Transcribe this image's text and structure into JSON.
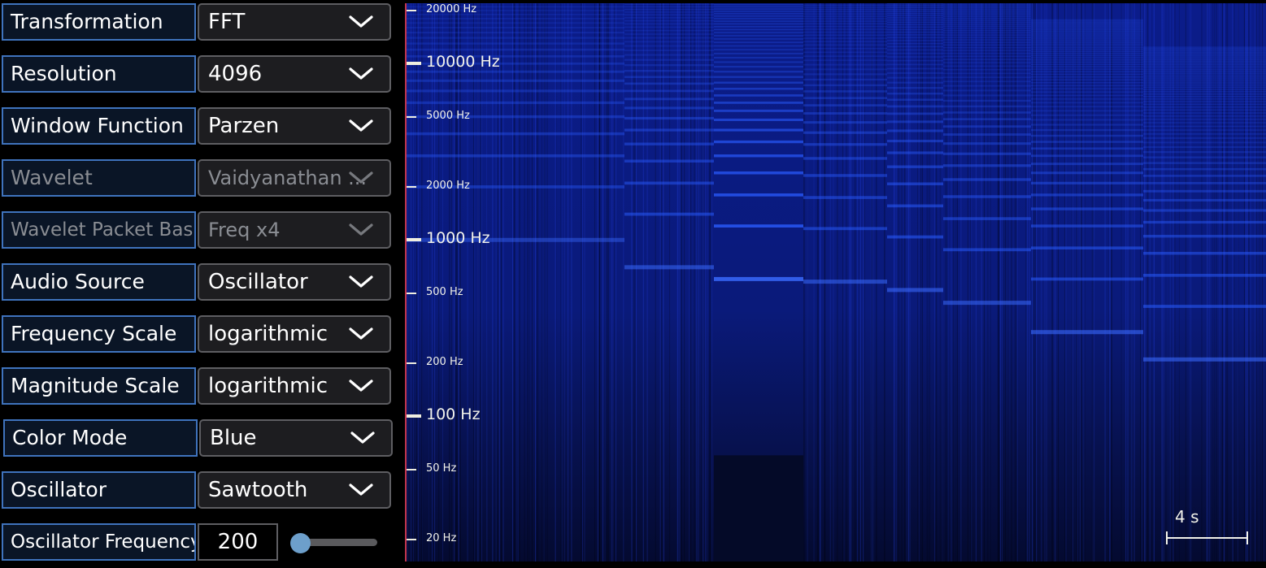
{
  "controls": [
    {
      "label": "Transformation",
      "value": "FFT",
      "disabled": false
    },
    {
      "label": "Resolution",
      "value": "4096",
      "disabled": false
    },
    {
      "label": "Window Function",
      "value": "Parzen",
      "disabled": false
    },
    {
      "label": "Wavelet",
      "value": "Vaidyanathan ...",
      "disabled": true
    },
    {
      "label": "Wavelet Packet Basis",
      "value": "Freq x4",
      "disabled": true
    },
    {
      "label": "Audio Source",
      "value": "Oscillator",
      "disabled": false
    },
    {
      "label": "Frequency Scale",
      "value": "logarithmic",
      "disabled": false
    },
    {
      "label": "Magnitude Scale",
      "value": "logarithmic",
      "disabled": false
    },
    {
      "label": "Color Mode",
      "value": "Blue",
      "disabled": false
    },
    {
      "label": "Oscillator",
      "value": "Sawtooth",
      "disabled": false
    }
  ],
  "oscillator_frequency": {
    "label": "Oscillator Frequency",
    "value": "200",
    "slider_level": 0.02
  },
  "spectrogram": {
    "color_mode": "blue",
    "frequency_scale": "logarithmic",
    "freq_min_hz": 15,
    "freq_max_hz": 22000,
    "ticks": [
      {
        "label": "20000 Hz",
        "freq": 20000,
        "major": false
      },
      {
        "label": "10000 Hz",
        "freq": 10000,
        "major": true
      },
      {
        "label": "5000 Hz",
        "freq": 5000,
        "major": false
      },
      {
        "label": "2000 Hz",
        "freq": 2000,
        "major": false
      },
      {
        "label": "1000 Hz",
        "freq": 1000,
        "major": true
      },
      {
        "label": "500 Hz",
        "freq": 500,
        "major": false
      },
      {
        "label": "200 Hz",
        "freq": 200,
        "major": false
      },
      {
        "label": "100 Hz",
        "freq": 100,
        "major": true
      },
      {
        "label": "50 Hz",
        "freq": 50,
        "major": false
      },
      {
        "label": "20 Hz",
        "freq": 20,
        "major": false
      }
    ],
    "time_scale_label": "4 s",
    "colors": {
      "axis": "#c2364e",
      "bright": "#2a5cff",
      "mid": "#1a38c8",
      "dark": "#06104a"
    },
    "segments": [
      {
        "fundamental_hz": 1000,
        "bright": 0.45,
        "noisy": true
      },
      {
        "fundamental_hz": 700,
        "bright": 0.55,
        "noisy": true
      },
      {
        "fundamental_hz": 600,
        "bright": 0.85,
        "noisy": false
      },
      {
        "fundamental_hz": 580,
        "bright": 0.55,
        "noisy": true
      },
      {
        "fundamental_hz": 520,
        "bright": 0.6,
        "noisy": true
      },
      {
        "fundamental_hz": 440,
        "bright": 0.55,
        "noisy": true
      },
      {
        "fundamental_hz": 300,
        "bright": 0.6,
        "noisy": true
      },
      {
        "fundamental_hz": 210,
        "bright": 0.6,
        "noisy": true
      }
    ]
  }
}
